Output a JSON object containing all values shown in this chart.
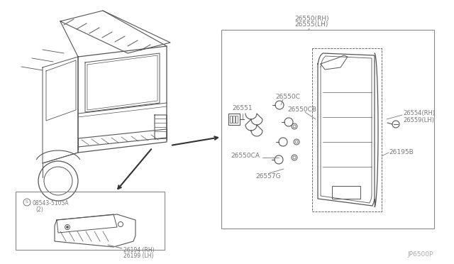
{
  "bg_color": "#ffffff",
  "line_color": "#888888",
  "text_color": "#777777",
  "diagram_id": "JP6500P",
  "parts": {
    "main_box_rh": "26550(RH)",
    "main_box_lh": "26555(LH)",
    "p26551": "26551",
    "p26550C": "26550C",
    "p26550CB": "26550CB",
    "p26550CA": "26550CA",
    "p26557G": "26557G",
    "p26554RH": "26554(RH)",
    "p26559LH": "26559(LH)",
    "p26195B": "26195B",
    "p08543": "08543-5105A",
    "p_2": "(2)",
    "p26194RH": "26194 (RH)",
    "p26199LH": "26199 (LH)"
  },
  "car_color": "#555555",
  "arrow_color": "#333333"
}
